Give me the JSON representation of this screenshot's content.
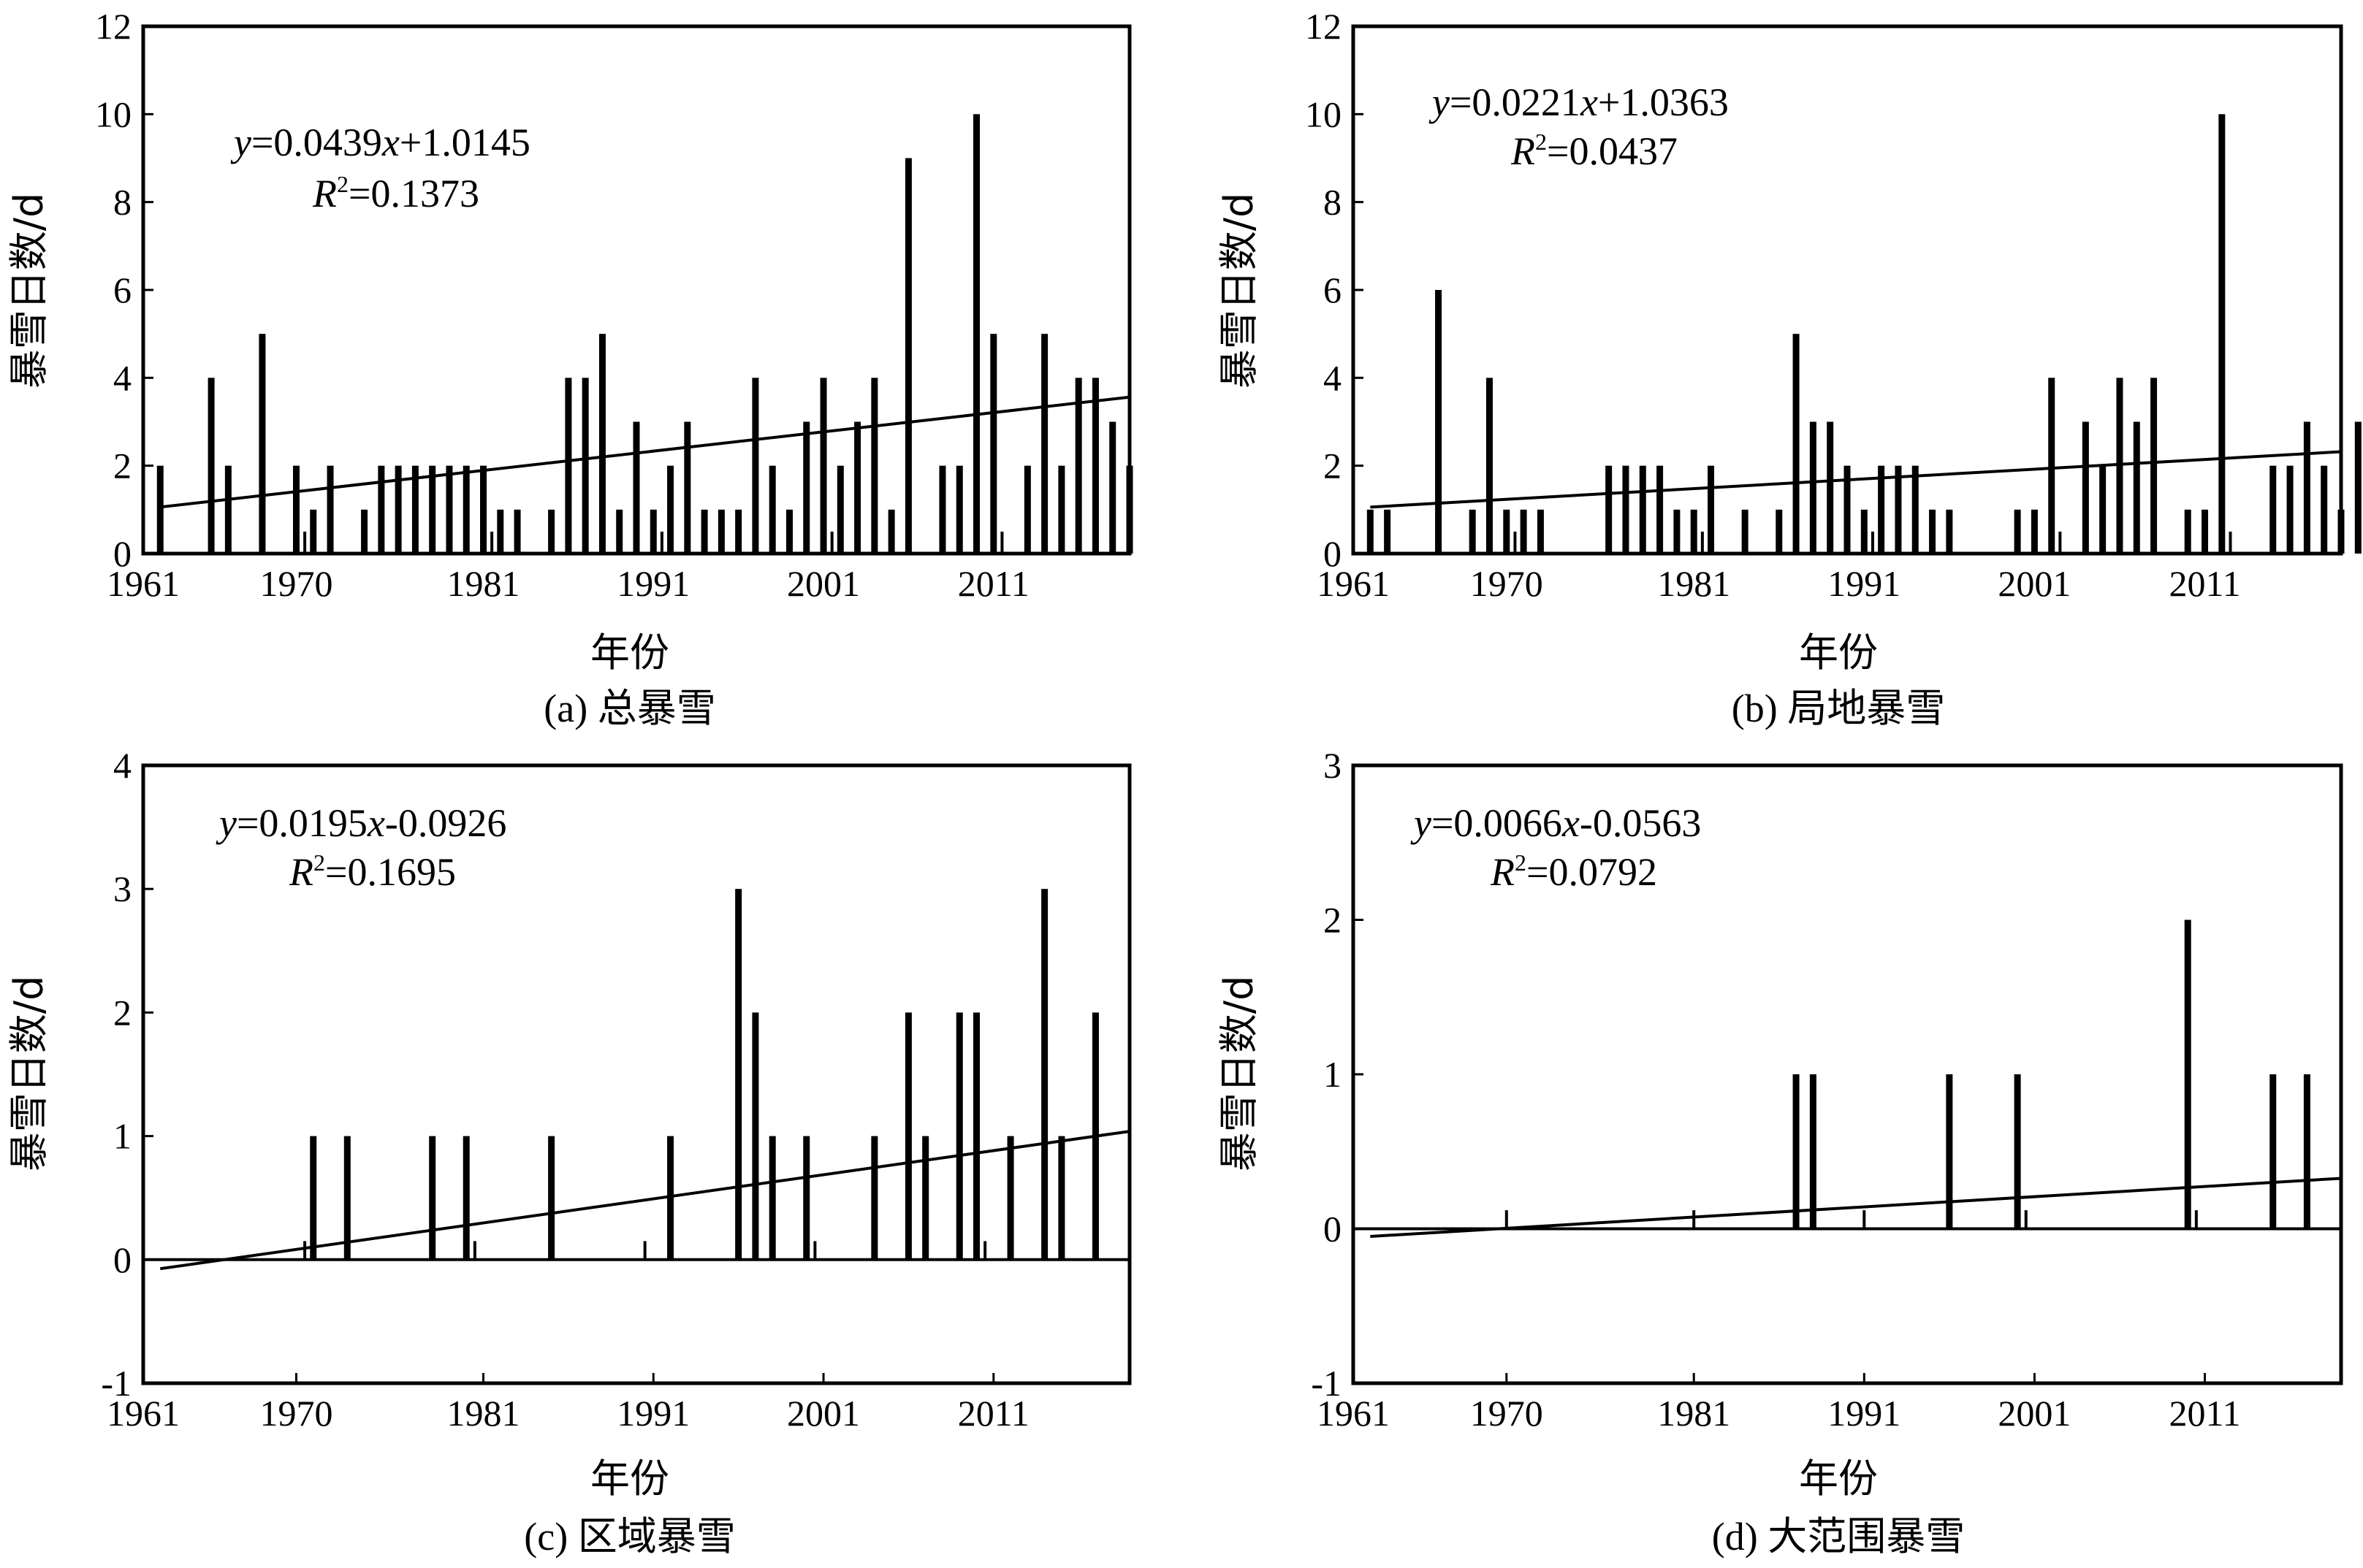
{
  "figure": {
    "xlabel": "年份",
    "ylabel": "暴雪日数/d"
  },
  "chart_data": [
    {
      "type": "bar",
      "panel": "a",
      "caption": "(a) 总暴雪",
      "eq_main": "=0.0439",
      "eq_tail": "+1.0145",
      "r2_value": "=0.1373",
      "trend": {
        "slope": 0.0439,
        "intercept": 1.0145
      },
      "xlim": [
        1961,
        2019
      ],
      "xticks": [
        1961,
        1970,
        1981,
        1991,
        2001,
        2011
      ],
      "ylim": [
        0,
        12
      ],
      "yticks": [
        0,
        2,
        4,
        6,
        8,
        10,
        12
      ],
      "years": [
        1962,
        1965,
        1966,
        1968,
        1970,
        1970.5,
        1971,
        1972,
        1974,
        1975,
        1976,
        1977,
        1978,
        1979,
        1980,
        1981,
        1981.5,
        1982,
        1983,
        1985,
        1986,
        1987,
        1988,
        1989,
        1990,
        1991,
        1991.5,
        1992,
        1993,
        1994,
        1995,
        1996,
        1997,
        1998,
        1999,
        2000,
        2001,
        2001.5,
        2002,
        2003,
        2004,
        2005,
        2006,
        2008,
        2009,
        2010,
        2011,
        2011.5,
        2013,
        2014,
        2015,
        2016,
        2017,
        2018,
        2019
      ],
      "values": [
        2,
        4,
        2,
        5,
        2,
        0.5,
        1,
        2,
        1,
        2,
        2,
        2,
        2,
        2,
        2,
        2,
        0.5,
        1,
        1,
        1,
        4,
        4,
        5,
        1,
        3,
        1,
        0.5,
        2,
        3,
        1,
        1,
        1,
        4,
        2,
        1,
        3,
        4,
        0.5,
        2,
        3,
        4,
        1,
        9,
        2,
        2,
        10,
        5,
        0.5,
        2,
        5,
        2,
        4,
        4,
        3,
        2
      ]
    },
    {
      "type": "bar",
      "panel": "b",
      "caption": "(b) 局地暴雪",
      "eq_main": "=0.0221",
      "eq_tail": "+1.0363",
      "r2_value": "=0.0437",
      "trend": {
        "slope": 0.0221,
        "intercept": 1.0363
      },
      "xlim": [
        1961,
        2019
      ],
      "xticks": [
        1961,
        1970,
        1981,
        1991,
        2001,
        2011
      ],
      "ylim": [
        0,
        12
      ],
      "yticks": [
        0,
        2,
        4,
        6,
        8,
        10,
        12
      ],
      "years": [
        1962,
        1963,
        1966,
        1968,
        1969,
        1970,
        1970.5,
        1971,
        1972,
        1976,
        1977,
        1978,
        1979,
        1980,
        1981,
        1981.5,
        1982,
        1984,
        1986,
        1987,
        1988,
        1989,
        1990,
        1991,
        1991.5,
        1992,
        1993,
        1994,
        1995,
        1996,
        2000,
        2001,
        2002,
        2002.5,
        2004,
        2005,
        2006,
        2007,
        2008,
        2010,
        2011,
        2012,
        2012.5,
        2015,
        2016,
        2017,
        2018,
        2019,
        2020
      ],
      "values": [
        1,
        1,
        6,
        1,
        4,
        1,
        0.5,
        1,
        1,
        2,
        2,
        2,
        2,
        1,
        1,
        0.5,
        2,
        1,
        1,
        5,
        3,
        3,
        2,
        1,
        0.5,
        2,
        2,
        2,
        1,
        1,
        1,
        1,
        4,
        0.5,
        3,
        2,
        4,
        3,
        4,
        1,
        1,
        10,
        0.5,
        2,
        2,
        3,
        2,
        1,
        3
      ]
    },
    {
      "type": "bar",
      "panel": "c",
      "caption": "(c) 区域暴雪",
      "eq_main": "=0.0195",
      "eq_tail": "-0.0926",
      "r2_value": "=0.1695",
      "trend": {
        "slope": 0.0195,
        "intercept": -0.0926
      },
      "xlim": [
        1961,
        2019
      ],
      "xticks": [
        1961,
        1970,
        1981,
        1991,
        2001,
        2011
      ],
      "ylim": [
        -1,
        4
      ],
      "yticks": [
        -1,
        0,
        1,
        2,
        3,
        4
      ],
      "years": [
        1971,
        1973,
        1978,
        1980,
        1985,
        1992,
        1996,
        1997,
        1998,
        2000,
        2004,
        2006,
        2007,
        2009,
        2010,
        2012,
        2014,
        2015,
        2017,
        1970.5,
        1980.5,
        1990.5,
        2000.5,
        2010.5
      ],
      "values": [
        1,
        1,
        1,
        1,
        1,
        1,
        3,
        2,
        1,
        1,
        1,
        2,
        1,
        2,
        2,
        1,
        3,
        1,
        2,
        0.15,
        0.15,
        0.15,
        0.15,
        0.15
      ]
    },
    {
      "type": "bar",
      "panel": "d",
      "caption": "(d) 大范围暴雪",
      "eq_main": "=0.0066",
      "eq_tail": "-0.0563",
      "r2_value": "=0.0792",
      "trend": {
        "slope": 0.0066,
        "intercept": -0.0563
      },
      "xlim": [
        1961,
        2019
      ],
      "xticks": [
        1961,
        1970,
        1981,
        1991,
        2001,
        2011
      ],
      "ylim": [
        -1,
        3
      ],
      "yticks": [
        -1,
        0,
        1,
        2,
        3
      ],
      "years": [
        1970,
        1981,
        1987,
        1988,
        1991,
        1996,
        2000,
        2000.5,
        2010,
        2010.5,
        2015,
        2017
      ],
      "values": [
        0.12,
        0.12,
        1,
        1,
        0.12,
        1,
        1,
        0.12,
        2,
        0.12,
        1,
        1
      ]
    }
  ]
}
